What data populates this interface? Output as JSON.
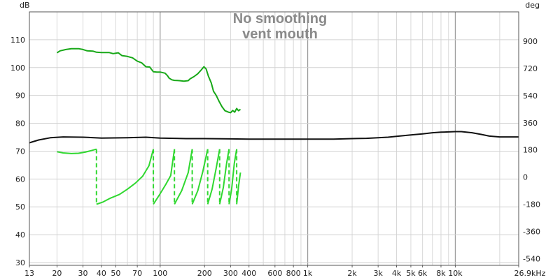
{
  "chart_data": {
    "type": "line",
    "title": "No smoothing",
    "subtitle": "vent mouth",
    "left_unit": "dB",
    "right_unit": "deg",
    "xscale": "log",
    "xlim": [
      13,
      26900
    ],
    "ylim": [
      29,
      120
    ],
    "y2lim": [
      -585,
      1095
    ],
    "grid": true,
    "x_tick_labels": [
      {
        "v": 13,
        "t": "13"
      },
      {
        "v": 20,
        "t": "20"
      },
      {
        "v": 30,
        "t": "30"
      },
      {
        "v": 40,
        "t": "40"
      },
      {
        "v": 50,
        "t": "50"
      },
      {
        "v": 70,
        "t": "70"
      },
      {
        "v": 100,
        "t": "100"
      },
      {
        "v": 200,
        "t": "200"
      },
      {
        "v": 300,
        "t": "300"
      },
      {
        "v": 400,
        "t": "400"
      },
      {
        "v": 600,
        "t": "600"
      },
      {
        "v": 800,
        "t": "800"
      },
      {
        "v": 1000,
        "t": "1k"
      },
      {
        "v": 2000,
        "t": "2k"
      },
      {
        "v": 3000,
        "t": "3k"
      },
      {
        "v": 4000,
        "t": "4k"
      },
      {
        "v": 5000,
        "t": "5k"
      },
      {
        "v": 6000,
        "t": "6k"
      },
      {
        "v": 8000,
        "t": "8k"
      },
      {
        "v": 10000,
        "t": "10k"
      },
      {
        "v": 26900,
        "t": "26.9kHz"
      }
    ],
    "y_ticks": [
      30,
      40,
      50,
      60,
      70,
      80,
      90,
      100,
      110
    ],
    "y2_ticks": [
      -540,
      -360,
      -180,
      0,
      180,
      360,
      540,
      720,
      900
    ],
    "series": [
      {
        "role": "spl",
        "color": "#18a818",
        "axis": "left",
        "dash": "",
        "points": [
          [
            20,
            105.3
          ],
          [
            21,
            106.0
          ],
          [
            23,
            106.5
          ],
          [
            25,
            106.8
          ],
          [
            28,
            106.8
          ],
          [
            30,
            106.5
          ],
          [
            32,
            106.0
          ],
          [
            35,
            105.9
          ],
          [
            37,
            105.5
          ],
          [
            40,
            105.4
          ],
          [
            45,
            105.4
          ],
          [
            48,
            105.0
          ],
          [
            52,
            105.3
          ],
          [
            55,
            104.3
          ],
          [
            60,
            104.0
          ],
          [
            65,
            103.5
          ],
          [
            70,
            102.3
          ],
          [
            75,
            101.7
          ],
          [
            80,
            100.3
          ],
          [
            85,
            100.2
          ],
          [
            90,
            98.5
          ],
          [
            95,
            98.4
          ],
          [
            100,
            98.4
          ],
          [
            108,
            98.0
          ],
          [
            112,
            97.1
          ],
          [
            115,
            96.2
          ],
          [
            120,
            95.6
          ],
          [
            125,
            95.4
          ],
          [
            135,
            95.3
          ],
          [
            145,
            95.1
          ],
          [
            155,
            95.3
          ],
          [
            160,
            96.0
          ],
          [
            170,
            96.8
          ],
          [
            180,
            97.8
          ],
          [
            190,
            99.2
          ],
          [
            198,
            100.3
          ],
          [
            205,
            99.5
          ],
          [
            212,
            97.0
          ],
          [
            222,
            94.5
          ],
          [
            230,
            91.5
          ],
          [
            240,
            90.0
          ],
          [
            250,
            88.0
          ],
          [
            262,
            86.0
          ],
          [
            275,
            84.5
          ],
          [
            290,
            84.0
          ],
          [
            300,
            83.8
          ],
          [
            310,
            84.6
          ],
          [
            320,
            84.0
          ],
          [
            330,
            85.3
          ],
          [
            340,
            84.5
          ],
          [
            350,
            85.0
          ]
        ]
      },
      {
        "role": "reference",
        "color": "#111111",
        "axis": "left",
        "dash": "",
        "points": [
          [
            13,
            73.0
          ],
          [
            15,
            74.0
          ],
          [
            18,
            74.8
          ],
          [
            22,
            75.1
          ],
          [
            30,
            75.0
          ],
          [
            40,
            74.7
          ],
          [
            60,
            74.8
          ],
          [
            80,
            75.0
          ],
          [
            100,
            74.7
          ],
          [
            150,
            74.5
          ],
          [
            200,
            74.5
          ],
          [
            300,
            74.4
          ],
          [
            400,
            74.3
          ],
          [
            600,
            74.3
          ],
          [
            1000,
            74.3
          ],
          [
            1500,
            74.3
          ],
          [
            2000,
            74.5
          ],
          [
            2500,
            74.6
          ],
          [
            3000,
            74.8
          ],
          [
            3500,
            75.0
          ],
          [
            4000,
            75.3
          ],
          [
            5000,
            75.8
          ],
          [
            6000,
            76.2
          ],
          [
            7000,
            76.6
          ],
          [
            8000,
            76.8
          ],
          [
            10000,
            77.0
          ],
          [
            11000,
            77.0
          ],
          [
            13000,
            76.6
          ],
          [
            15000,
            76.0
          ],
          [
            17000,
            75.4
          ],
          [
            20000,
            75.1
          ],
          [
            26900,
            75.1
          ]
        ]
      },
      {
        "role": "phase",
        "color": "#30d830",
        "axis": "right",
        "dash": "",
        "segments": [
          [
            [
              20,
              168
            ],
            [
              22,
              160
            ],
            [
              25,
              156
            ],
            [
              28,
              158
            ],
            [
              31,
              165
            ],
            [
              34,
              175
            ],
            [
              37,
              185
            ]
          ],
          [
            [
              37,
              -180
            ],
            [
              41,
              -165
            ],
            [
              46,
              -140
            ],
            [
              53,
              -115
            ],
            [
              60,
              -80
            ],
            [
              68,
              -40
            ],
            [
              76,
              5
            ],
            [
              84,
              75
            ],
            [
              90,
              185
            ]
          ],
          [
            [
              90,
              -180
            ],
            [
              100,
              -110
            ],
            [
              109,
              -50
            ],
            [
              118,
              10
            ],
            [
              125,
              185
            ]
          ],
          [
            [
              125,
              -180
            ],
            [
              140,
              -90
            ],
            [
              155,
              30
            ],
            [
              165,
              185
            ]
          ],
          [
            [
              165,
              -180
            ],
            [
              180,
              -90
            ],
            [
              195,
              40
            ],
            [
              210,
              185
            ]
          ],
          [
            [
              210,
              -180
            ],
            [
              225,
              -80
            ],
            [
              240,
              60
            ],
            [
              253,
              185
            ]
          ],
          [
            [
              253,
              -180
            ],
            [
              268,
              -70
            ],
            [
              282,
              90
            ],
            [
              293,
              185
            ]
          ],
          [
            [
              293,
              -180
            ],
            [
              305,
              -80
            ],
            [
              318,
              90
            ],
            [
              330,
              185
            ]
          ],
          [
            [
              330,
              -180
            ],
            [
              340,
              -60
            ],
            [
              350,
              30
            ]
          ]
        ],
        "wraps": [
          [
            [
              37,
              185
            ],
            [
              37,
              -180
            ]
          ],
          [
            [
              90,
              185
            ],
            [
              90,
              -180
            ]
          ],
          [
            [
              125,
              185
            ],
            [
              125,
              -180
            ]
          ],
          [
            [
              165,
              185
            ],
            [
              165,
              -180
            ]
          ],
          [
            [
              210,
              185
            ],
            [
              210,
              -180
            ]
          ],
          [
            [
              253,
              185
            ],
            [
              253,
              -180
            ]
          ],
          [
            [
              293,
              185
            ],
            [
              293,
              -180
            ]
          ],
          [
            [
              330,
              185
            ],
            [
              330,
              -180
            ]
          ]
        ]
      }
    ]
  }
}
